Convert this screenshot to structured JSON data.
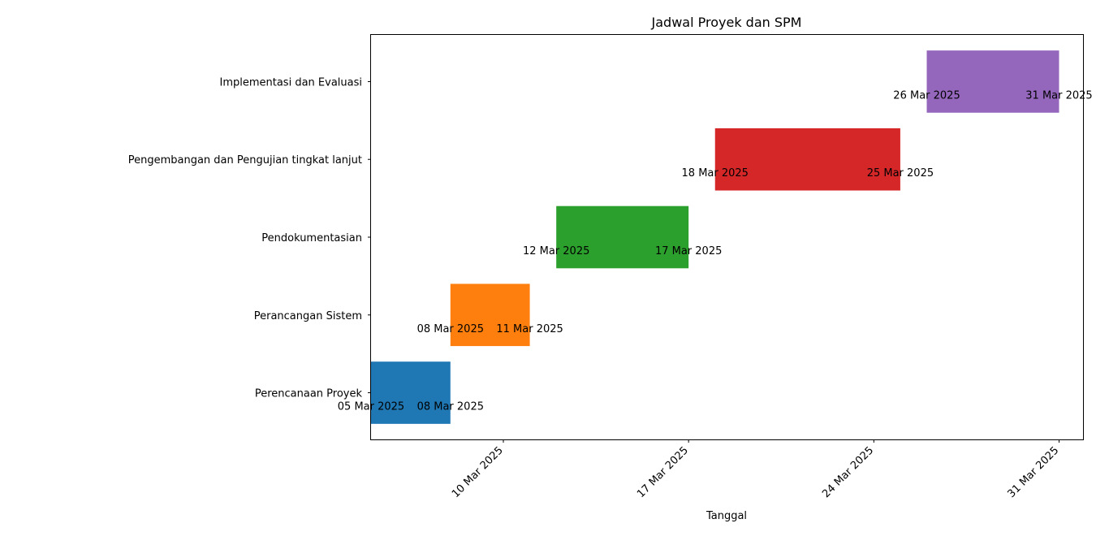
{
  "chart_data": {
    "type": "gantt",
    "title": "Jadwal Proyek dan SPM",
    "xlabel": "Tanggal",
    "ylabel": "",
    "xlim": [
      "2025-03-05",
      "2025-03-31"
    ],
    "x_ticks": [
      {
        "date": "2025-03-10",
        "label": "10 Mar 2025"
      },
      {
        "date": "2025-03-17",
        "label": "17 Mar 2025"
      },
      {
        "date": "2025-03-24",
        "label": "24 Mar 2025"
      },
      {
        "date": "2025-03-31",
        "label": "31 Mar 2025"
      }
    ],
    "tasks": [
      {
        "name": "Perencanaan Proyek",
        "start": "2025-03-05",
        "end": "2025-03-08",
        "start_label": "05 Mar 2025",
        "end_label": "08 Mar 2025",
        "color": "#1f77b4"
      },
      {
        "name": "Perancangan Sistem",
        "start": "2025-03-08",
        "end": "2025-03-11",
        "start_label": "08 Mar 2025",
        "end_label": "11 Mar 2025",
        "color": "#ff7f0e"
      },
      {
        "name": "Pendokumentasian",
        "start": "2025-03-12",
        "end": "2025-03-17",
        "start_label": "12 Mar 2025",
        "end_label": "17 Mar 2025",
        "color": "#2ca02c"
      },
      {
        "name": "Pengembangan dan Pengujian tingkat lanjut",
        "start": "2025-03-18",
        "end": "2025-03-25",
        "start_label": "18 Mar 2025",
        "end_label": "25 Mar 2025",
        "color": "#d62728"
      },
      {
        "name": "Implementasi dan Evaluasi",
        "start": "2025-03-26",
        "end": "2025-03-31",
        "start_label": "26 Mar 2025",
        "end_label": "31 Mar 2025",
        "color": "#9467bd"
      }
    ],
    "grid": false,
    "legend": "none"
  }
}
